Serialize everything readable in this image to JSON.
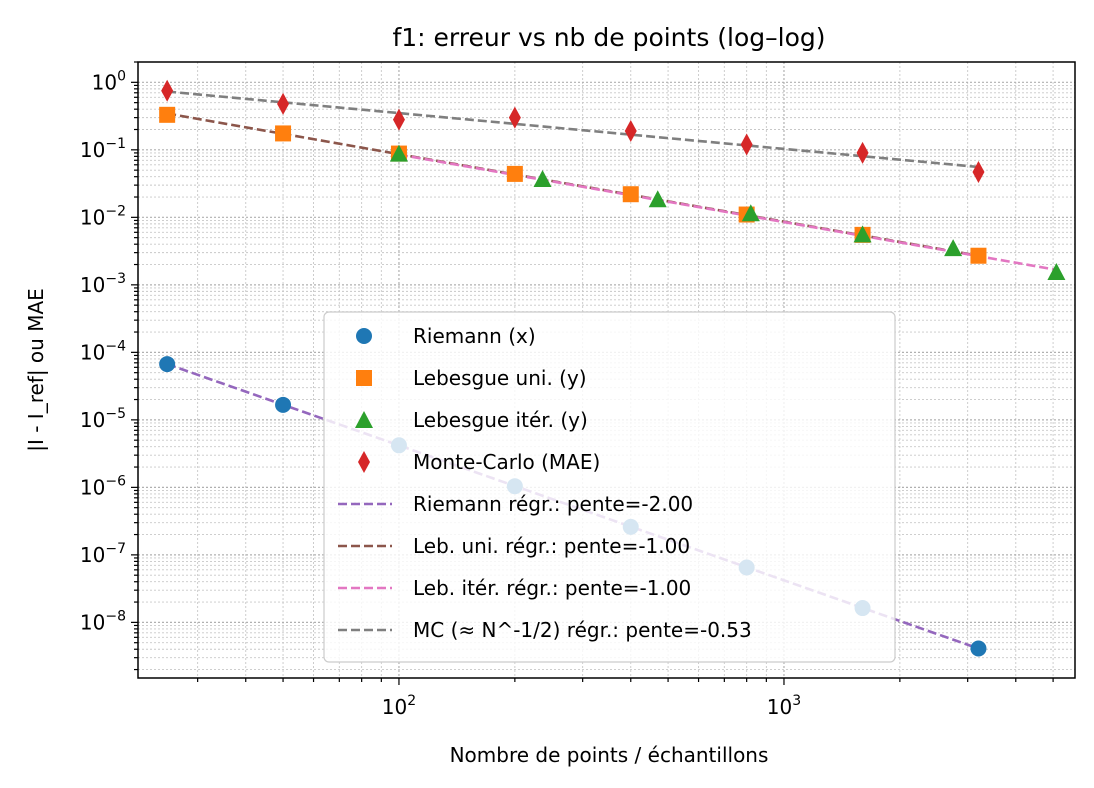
{
  "chart_data": {
    "type": "scatter",
    "title": "f1: erreur vs nb de points (log–log)",
    "xlabel": "Nombre de points / échantillons",
    "ylabel": "|I - I_ref| ou MAE",
    "x_scale": "log",
    "y_scale": "log",
    "xlim": [
      21,
      5700
    ],
    "ylim": [
      1.5e-09,
      2
    ],
    "grid": "both-major-and-minor",
    "legend_position": "lower-center",
    "x_ticks": [
      {
        "value": 100,
        "base": "10",
        "exp": "2"
      },
      {
        "value": 1000,
        "base": "10",
        "exp": "3"
      }
    ],
    "y_ticks": [
      {
        "value": 1e-08,
        "base": "10",
        "exp": "−8"
      },
      {
        "value": 1e-07,
        "base": "10",
        "exp": "−7"
      },
      {
        "value": 1e-06,
        "base": "10",
        "exp": "−6"
      },
      {
        "value": 1e-05,
        "base": "10",
        "exp": "−5"
      },
      {
        "value": 0.0001,
        "base": "10",
        "exp": "−4"
      },
      {
        "value": 0.001,
        "base": "10",
        "exp": "−3"
      },
      {
        "value": 0.01,
        "base": "10",
        "exp": "−2"
      },
      {
        "value": 0.1,
        "base": "10",
        "exp": "−1"
      },
      {
        "value": 1,
        "base": "10",
        "exp": "0"
      }
    ],
    "series": [
      {
        "name": "Riemann (x)",
        "marker": "circle",
        "color": "#1f77b4",
        "x": [
          25,
          50,
          100,
          200,
          400,
          800,
          1600,
          3200
        ],
        "y": [
          6.7e-05,
          1.67e-05,
          4.2e-06,
          1.04e-06,
          2.6e-07,
          6.5e-08,
          1.63e-08,
          4.1e-09
        ]
      },
      {
        "name": "Lebesgue uni. (y)",
        "marker": "square",
        "color": "#ff7f0e",
        "x": [
          25,
          50,
          100,
          200,
          400,
          800,
          1600,
          3200
        ],
        "y": [
          0.33,
          0.175,
          0.088,
          0.044,
          0.022,
          0.011,
          0.0055,
          0.0027
        ]
      },
      {
        "name": "Lebesgue itér. (y)",
        "marker": "triangle",
        "color": "#2ca02c",
        "x": [
          100,
          236,
          470,
          820,
          1600,
          2750,
          5100
        ],
        "y": [
          0.088,
          0.037,
          0.0185,
          0.0115,
          0.0056,
          0.0035,
          0.00155
        ]
      },
      {
        "name": "Monte-Carlo (MAE)",
        "marker": "diamond",
        "color": "#d62728",
        "x": [
          25,
          50,
          100,
          200,
          400,
          800,
          1600,
          3200
        ],
        "y": [
          0.75,
          0.48,
          0.28,
          0.3,
          0.19,
          0.12,
          0.09,
          0.047
        ]
      }
    ],
    "fits": [
      {
        "name": "Riemann régr.: pente=-2.00",
        "color": "#9467bd",
        "x": [
          25,
          3200
        ],
        "y": [
          6.7e-05,
          4.1e-09
        ]
      },
      {
        "name": "Leb. uni. régr.: pente=-1.00",
        "color": "#8c564b",
        "x": [
          25,
          3200
        ],
        "y": [
          0.345,
          0.0027
        ]
      },
      {
        "name": "Leb. itér. régr.: pente=-1.00",
        "color": "#e377c2",
        "x": [
          100,
          5100
        ],
        "y": [
          0.085,
          0.00167
        ]
      },
      {
        "name": "MC (≈ N^-1/2) régr.: pente=-0.53",
        "color": "#7f7f7f",
        "x": [
          25,
          3200
        ],
        "y": [
          0.73,
          0.0557
        ]
      }
    ]
  }
}
